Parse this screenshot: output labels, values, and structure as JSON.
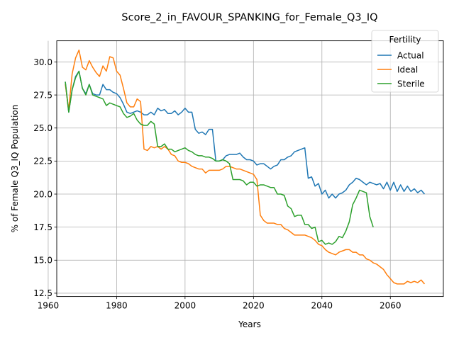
{
  "chart_data": {
    "type": "line",
    "title": "Score_2_in_FAVOUR_SPANKING_for_Female_Q3_IQ",
    "xlabel": "Years",
    "ylabel": "% of Female Q3_IQ Population",
    "xlim": [
      1962.5,
      2075.5
    ],
    "ylim": [
      12.25,
      31.6
    ],
    "xticks": [
      1960,
      1980,
      2000,
      2020,
      2040,
      2060
    ],
    "yticks": [
      12.5,
      15.0,
      17.5,
      20.0,
      22.5,
      25.0,
      27.5,
      30.0
    ],
    "grid": true,
    "legend": {
      "title": "Fertility",
      "placement": "top-right"
    },
    "series": [
      {
        "name": "Actual",
        "color": "#1f77b4",
        "x": [
          1965,
          1966,
          1967,
          1968,
          1969,
          1970,
          1971,
          1972,
          1973,
          1974,
          1975,
          1976,
          1977,
          1978,
          1979,
          1980,
          1981,
          1982,
          1983,
          1984,
          1985,
          1986,
          1987,
          1988,
          1989,
          1990,
          1991,
          1992,
          1993,
          1994,
          1995,
          1996,
          1997,
          1998,
          1999,
          2000,
          2001,
          2002,
          2003,
          2004,
          2005,
          2006,
          2007,
          2008,
          2009,
          2010,
          2011,
          2012,
          2013,
          2014,
          2015,
          2016,
          2017,
          2018,
          2019,
          2020,
          2021,
          2022,
          2023,
          2024,
          2025,
          2026,
          2027,
          2028,
          2029,
          2030,
          2031,
          2032,
          2033,
          2034,
          2035,
          2036,
          2037,
          2038,
          2039,
          2040,
          2041,
          2042,
          2043,
          2044,
          2045,
          2046,
          2047,
          2048,
          2049,
          2050,
          2051,
          2052,
          2053,
          2054,
          2055,
          2056,
          2057,
          2058,
          2059,
          2060,
          2061,
          2062,
          2063,
          2064,
          2065,
          2066,
          2067,
          2068,
          2069,
          2070
        ],
        "y": [
          28.5,
          26.2,
          27.9,
          28.9,
          29.3,
          28.0,
          27.6,
          28.3,
          27.6,
          27.5,
          27.5,
          28.3,
          27.9,
          27.9,
          27.7,
          27.6,
          27.3,
          26.8,
          26.2,
          26.1,
          26.2,
          26.3,
          26.2,
          26.0,
          26.0,
          26.2,
          26.0,
          26.5,
          26.3,
          26.4,
          26.1,
          26.1,
          26.3,
          26.0,
          26.2,
          26.5,
          26.2,
          26.2,
          24.9,
          24.6,
          24.7,
          24.5,
          24.9,
          24.9,
          22.5,
          22.5,
          22.6,
          22.9,
          23.0,
          23.0,
          23.0,
          23.1,
          22.8,
          22.6,
          22.6,
          22.5,
          22.2,
          22.3,
          22.3,
          22.1,
          21.9,
          22.1,
          22.2,
          22.6,
          22.6,
          22.8,
          22.9,
          23.2,
          23.3,
          23.4,
          23.5,
          21.2,
          21.3,
          20.6,
          20.8,
          20.0,
          20.3,
          19.7,
          20.0,
          19.7,
          20.0,
          20.1,
          20.3,
          20.7,
          20.9,
          21.2,
          21.1,
          20.9,
          20.7,
          20.9,
          20.8,
          20.7,
          20.8,
          20.4,
          20.9,
          20.3,
          20.9,
          20.2,
          20.7,
          20.2,
          20.6,
          20.2,
          20.4,
          20.1,
          20.3,
          20.0
        ]
      },
      {
        "name": "Ideal",
        "color": "#ff7f0e",
        "x": [
          1965,
          1966,
          1967,
          1968,
          1969,
          1970,
          1971,
          1972,
          1973,
          1974,
          1975,
          1976,
          1977,
          1978,
          1979,
          1980,
          1981,
          1982,
          1983,
          1984,
          1985,
          1986,
          1987,
          1988,
          1989,
          1990,
          1991,
          1992,
          1993,
          1994,
          1995,
          1996,
          1997,
          1998,
          1999,
          2000,
          2001,
          2002,
          2003,
          2004,
          2005,
          2006,
          2007,
          2008,
          2009,
          2010,
          2011,
          2012,
          2013,
          2014,
          2015,
          2016,
          2017,
          2018,
          2019,
          2020,
          2021,
          2022,
          2023,
          2024,
          2025,
          2026,
          2027,
          2028,
          2029,
          2030,
          2031,
          2032,
          2033,
          2034,
          2035,
          2036,
          2037,
          2038,
          2039,
          2040,
          2041,
          2042,
          2043,
          2044,
          2045,
          2046,
          2047,
          2048,
          2049,
          2050,
          2051,
          2052,
          2053,
          2054,
          2055,
          2056,
          2057,
          2058,
          2059,
          2060,
          2061,
          2062,
          2063,
          2064,
          2065,
          2066,
          2067,
          2068,
          2069,
          2070
        ],
        "y": [
          28.3,
          26.4,
          29.1,
          30.3,
          30.9,
          29.6,
          29.4,
          30.1,
          29.6,
          29.2,
          28.9,
          29.7,
          29.3,
          30.4,
          30.3,
          29.3,
          29.0,
          28.0,
          26.9,
          26.6,
          26.6,
          27.2,
          27.0,
          23.4,
          23.3,
          23.6,
          23.5,
          23.6,
          23.4,
          23.6,
          23.4,
          23.0,
          22.9,
          22.5,
          22.4,
          22.4,
          22.3,
          22.1,
          22.0,
          21.9,
          21.9,
          21.6,
          21.8,
          21.8,
          21.8,
          21.8,
          21.9,
          22.1,
          22.1,
          22.0,
          21.9,
          21.9,
          21.8,
          21.7,
          21.6,
          21.5,
          21.1,
          18.4,
          18.0,
          17.8,
          17.8,
          17.8,
          17.7,
          17.7,
          17.4,
          17.3,
          17.1,
          16.9,
          16.9,
          16.9,
          16.9,
          16.8,
          16.7,
          16.5,
          16.2,
          16.1,
          15.8,
          15.6,
          15.5,
          15.4,
          15.6,
          15.7,
          15.8,
          15.8,
          15.6,
          15.6,
          15.4,
          15.4,
          15.1,
          15.0,
          14.8,
          14.7,
          14.5,
          14.3,
          13.9,
          13.6,
          13.3,
          13.2,
          13.2,
          13.2,
          13.4,
          13.3,
          13.4,
          13.3,
          13.5,
          13.2
        ]
      },
      {
        "name": "Sterile",
        "color": "#2ca02c",
        "x": [
          1965,
          1966,
          1967,
          1968,
          1969,
          1970,
          1971,
          1972,
          1973,
          1974,
          1975,
          1976,
          1977,
          1978,
          1979,
          1980,
          1981,
          1982,
          1983,
          1984,
          1985,
          1986,
          1987,
          1988,
          1989,
          1990,
          1991,
          1992,
          1993,
          1994,
          1995,
          1996,
          1997,
          1998,
          1999,
          2000,
          2001,
          2002,
          2003,
          2004,
          2005,
          2006,
          2007,
          2008,
          2009,
          2010,
          2011,
          2012,
          2013,
          2014,
          2015,
          2016,
          2017,
          2018,
          2019,
          2020,
          2021,
          2022,
          2023,
          2024,
          2025,
          2026,
          2027,
          2028,
          2029,
          2030,
          2031,
          2032,
          2033,
          2034,
          2035,
          2036,
          2037,
          2038,
          2039,
          2040,
          2041,
          2042,
          2043,
          2044,
          2045,
          2046,
          2047,
          2048,
          2049,
          2050,
          2051,
          2052,
          2053,
          2054,
          2055
        ],
        "y": [
          28.5,
          26.2,
          27.9,
          28.8,
          29.3,
          28.0,
          27.5,
          28.3,
          27.5,
          27.4,
          27.3,
          27.2,
          26.7,
          26.9,
          26.8,
          26.7,
          26.6,
          26.1,
          25.8,
          25.9,
          26.1,
          25.6,
          25.3,
          25.2,
          25.2,
          25.5,
          25.3,
          23.6,
          23.6,
          23.8,
          23.4,
          23.4,
          23.2,
          23.3,
          23.4,
          23.5,
          23.3,
          23.2,
          23.0,
          22.9,
          22.9,
          22.8,
          22.8,
          22.7,
          22.5,
          22.5,
          22.6,
          22.5,
          22.3,
          21.1,
          21.1,
          21.1,
          21.0,
          20.7,
          20.9,
          20.9,
          20.6,
          20.7,
          20.7,
          20.6,
          20.5,
          20.5,
          20.0,
          20.0,
          19.9,
          19.1,
          18.9,
          18.3,
          18.4,
          18.4,
          17.7,
          17.7,
          17.4,
          17.5,
          16.4,
          16.5,
          16.2,
          16.3,
          16.2,
          16.4,
          16.8,
          16.7,
          17.2,
          17.9,
          19.2,
          19.7,
          20.3,
          20.2,
          20.1,
          18.3,
          17.5
        ]
      }
    ]
  }
}
